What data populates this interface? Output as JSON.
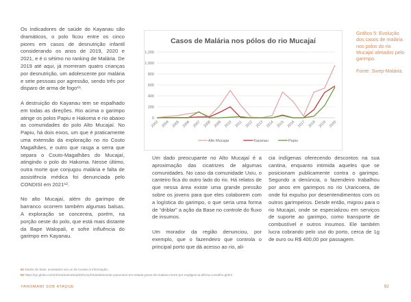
{
  "left_column": {
    "paragraphs": [
      "Os indicadores de saúde do Kayanau são dramáticos, o polo ficou entre os cinco piores em casos de desnutrição infantil considerando os anos de 2019, 2020 e 2021, e é o sétimo no ranking de Malária. De 2019 até aqui, já morreram quatro crianças por desnutrição, um adolescente por malária e sete pessoas por agressão, sendo três por disparo de arma de fogo⁶¹.",
      "A destruição do Kayanau tem se espalhado em todas as direções. Rio acima o garimpo atinge os polos Papiu e Hakoma e rio abaixo as comunidades do polo Alto Mucajaí. No Papiu, há dois eixos, um que é praticamente uma extensão da exploração no rio Couto Magalhães, e outro que rasga a serra que separa o Couto-Magalhães do Mucajaí, atingindo o polo do Hakoma. Nesse último, outra morte que conjugou malária e falta de assistência médica foi denunciada pelo CONDISI em 2021⁶².",
      "No alto Mucajaí, além do garimpo de barranco ocorrem também algumas balsas. A exploração se concentra, porém, na porção oeste do polo, que está mais distante da Bape Walopali, e sofre influência do garimpo em Kayanau."
    ]
  },
  "middle_column": {
    "paragraphs": [
      "Um dado preocupante no Alto Mucajaí é a aproximação das cicatrizes de algumas comunidades. No caso da comunidade Uxiu, o canteiro fica do outro lado do rio. Há relatos de que nessa área existe uma grande pressão sobre os jovens para que eles colaborem com a logística do garimpo, o que seria uma forma de “driblar” a ação da Base no controle do fluxo de insumos.",
      "Um morador da região denunciou, por exemplo, que o fazendeiro que controla o principal porto que dá acesso ao rio, ali-"
    ]
  },
  "right_column": {
    "paragraphs": [
      "cia indígenas oferecendo descontos na sua cantina, enquanto intimida aqueles que se posicionam publicamente contra o garimpo. Segundo a denúncia, o fazendeiro trabalhou por anos em garimpos no rio Uraricoera, de onde foi expulso por desentendimentos com os outros garimpeiros. Desde então, migrou para o rio Mucajaí, onde se especializou em serviços de suporte ao garimpo, como transporte de combustível e outros insumos. Ele também lucra cobrando pelo uso do porto, cerca de 1g de ouro ou R$ 400,00 por passagem."
    ]
  },
  "caption": {
    "title": "Gráfico 5: Evolução dos casos de malária nos polos do rio Mucajaí afetados pelo garimpo.",
    "source": "Fonte: Sivep-Malária."
  },
  "footnotes": [
    {
      "num": "61",
      "text": "Dados do Siasi, acessados via Lei de Acesso à Informação."
    },
    {
      "num": "62",
      "text": "https://g1.globo.com/rr/roraima/noticia/2021/11/04/adolescente-yanomami-em-estado-grave-de-malaria-morre-por-negligencia-afirma-conselho.ghtml"
    }
  ],
  "footer": {
    "title": "YANOMAMI SOB ATAQUE",
    "page": "92"
  },
  "colors": {
    "accent": "#c07a4a",
    "alto_mucajai": "#e0a8a8",
    "kayanau": "#b23a3a",
    "papiu": "#6a9a3a"
  },
  "chart_data": {
    "type": "line",
    "title": "Casos de Malária nos pólos do rio Mucajaí",
    "categories": [
      "2003",
      "2004",
      "2005",
      "2006",
      "2007",
      "2008",
      "2009",
      "2010",
      "2011",
      "2012",
      "2013",
      "2014",
      "2015",
      "2016",
      "2017",
      "2018",
      "2019",
      "2020"
    ],
    "yticks": [
      "0",
      "200",
      "400",
      "600",
      "800",
      "1,000",
      "1,200"
    ],
    "ylim": [
      0,
      1200
    ],
    "grid": true,
    "legend": "bottom",
    "series": [
      {
        "name": "Alto Mucajai",
        "color": "#e0a8a8",
        "values": [
          0,
          25,
          40,
          75,
          100,
          25,
          220,
          500,
          230,
          10,
          0,
          40,
          470,
          300,
          30,
          470,
          540,
          960
        ]
      },
      {
        "name": "Kayanau",
        "color": "#b23a3a",
        "values": [
          0,
          5,
          5,
          5,
          15,
          15,
          100,
          200,
          5,
          0,
          0,
          0,
          50,
          0,
          0,
          150,
          460,
          580
        ]
      },
      {
        "name": "Papiu",
        "color": "#6a9a3a",
        "values": [
          0,
          0,
          0,
          0,
          110,
          0,
          0,
          10,
          20,
          0,
          0,
          0,
          40,
          0,
          0,
          30,
          220,
          560
        ]
      }
    ]
  }
}
